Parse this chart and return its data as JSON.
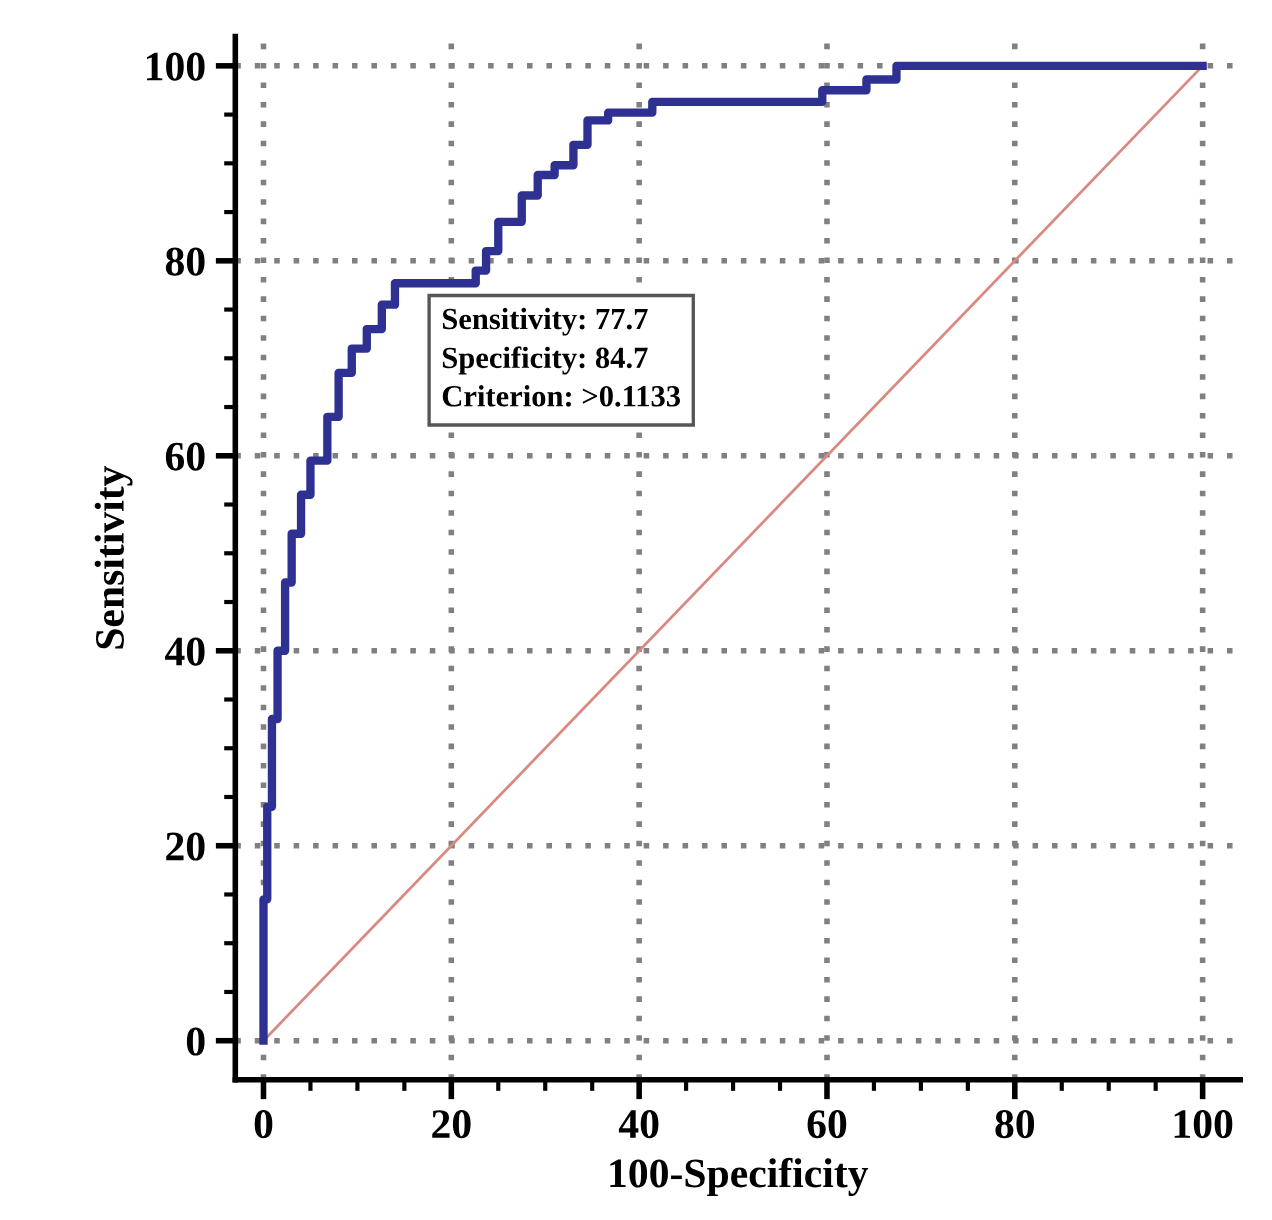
{
  "chart_data": {
    "type": "line",
    "xlabel": "100-Specificity",
    "ylabel": "Sensitivity",
    "xlim": [
      -3,
      104
    ],
    "ylim": [
      -4,
      103
    ],
    "xticks": [
      0,
      {
        "value": 5,
        "label": null
      },
      {
        "value": 10,
        "label": null
      },
      {
        "value": 15,
        "label": null
      },
      20,
      {
        "value": 25,
        "label": null
      },
      {
        "value": 30,
        "label": null
      },
      {
        "value": 35,
        "label": null
      },
      40,
      {
        "value": 45,
        "label": null
      },
      {
        "value": 50,
        "label": null
      },
      {
        "value": 55,
        "label": null
      },
      60,
      {
        "value": 65,
        "label": null
      },
      {
        "value": 70,
        "label": null
      },
      {
        "value": 75,
        "label": null
      },
      80,
      {
        "value": 85,
        "label": null
      },
      {
        "value": 90,
        "label": null
      },
      {
        "value": 95,
        "label": null
      },
      100
    ],
    "yticks": [
      0,
      {
        "value": 5,
        "label": null
      },
      {
        "value": 10,
        "label": null
      },
      {
        "value": 15,
        "label": null
      },
      20,
      {
        "value": 25,
        "label": null
      },
      {
        "value": 30,
        "label": null
      },
      {
        "value": 35,
        "label": null
      },
      40,
      {
        "value": 45,
        "label": null
      },
      {
        "value": 50,
        "label": null
      },
      {
        "value": 55,
        "label": null
      },
      60,
      {
        "value": 65,
        "label": null
      },
      {
        "value": 70,
        "label": null
      },
      {
        "value": 75,
        "label": null
      },
      80,
      {
        "value": 85,
        "label": null
      },
      {
        "value": 90,
        "label": null
      },
      {
        "value": 95,
        "label": null
      },
      100
    ],
    "grid": true,
    "marker": "none",
    "line_style": "solid",
    "annotations": [
      "Sensitivity: 77.7\nSpecificity: 84.7\nCriterion: >0.1133"
    ],
    "series": [
      {
        "color": "#2e3192",
        "x": [
          0,
          0,
          0.4,
          0.4,
          0.9,
          0.9,
          1.5,
          1.5,
          2.3,
          2.3,
          3,
          3,
          4,
          4,
          5,
          5,
          6.8,
          6.8,
          8,
          8,
          9.4,
          9.4,
          11,
          11,
          12.6,
          12.6,
          14,
          14,
          15.1,
          22.6,
          22.6,
          23.7,
          23.7,
          25,
          25,
          27.5,
          27.5,
          29.2,
          29.2,
          31,
          31,
          33,
          33,
          34.5,
          34.5,
          36.7,
          36.7,
          41.4,
          41.4,
          59.5,
          59.5,
          64.2,
          64.2,
          67.4,
          67.4,
          100
        ],
        "values": [
          0,
          14.5,
          14.5,
          24,
          24,
          33,
          33,
          40,
          40,
          47,
          47,
          52,
          52,
          56,
          56,
          59.5,
          59.5,
          64,
          64,
          68.5,
          68.5,
          71,
          71,
          73,
          73,
          75.5,
          75.5,
          77.7,
          77.7,
          77.7,
          79,
          79,
          81,
          81,
          84,
          84,
          86.7,
          86.7,
          88.8,
          88.8,
          89.8,
          89.8,
          91.9,
          91.9,
          94.4,
          94.4,
          95.2,
          95.2,
          96.3,
          96.3,
          97.5,
          97.5,
          98.6,
          98.6,
          100,
          100
        ]
      },
      {
        "color": "#d98a80",
        "x": [
          0,
          100
        ],
        "values": [
          0,
          100
        ]
      }
    ]
  }
}
